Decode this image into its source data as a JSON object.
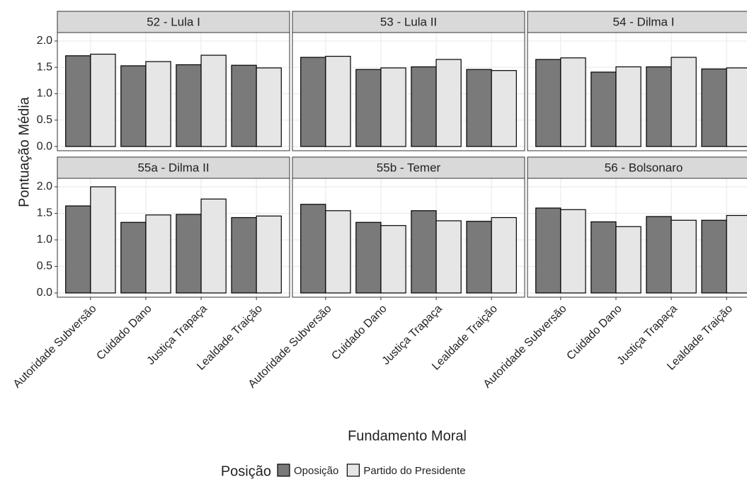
{
  "chart_data": {
    "type": "bar",
    "x_label": "Fundamento Moral",
    "y_label": "Pontuação Média",
    "legend_title": "Posição",
    "panels": [
      "52 - Lula I",
      "53 - Lula II",
      "54 - Dilma I",
      "55a - Dilma II",
      "55b - Temer",
      "56 - Bolsonaro"
    ],
    "categories": [
      "Autoridade Subversão",
      "Cuidado Dano",
      "Justiça Trapaça",
      "Lealdade Traição"
    ],
    "ylim": [
      -0.08,
      2.16
    ],
    "yticks": [
      {
        "value": 0,
        "label": "0.0"
      },
      0.5,
      {
        "value": 1,
        "label": "1.0"
      },
      1.5,
      {
        "value": 2,
        "label": "2.0"
      }
    ],
    "grid": true,
    "series": [
      {
        "name": "Oposição",
        "color": "#7a7a7a",
        "values": [
          [
            1.72,
            1.53,
            1.55,
            1.54
          ],
          [
            1.69,
            1.46,
            1.51,
            1.46
          ],
          [
            1.65,
            1.41,
            1.51,
            1.47
          ],
          [
            1.64,
            1.33,
            1.48,
            1.42
          ],
          [
            1.67,
            1.33,
            1.55,
            1.35
          ],
          [
            1.6,
            1.34,
            1.44,
            1.37
          ]
        ]
      },
      {
        "name": "Partido do Presidente",
        "color": "#e6e6e6",
        "values": [
          [
            1.75,
            1.61,
            1.73,
            1.49
          ],
          [
            1.71,
            1.49,
            1.65,
            1.44
          ],
          [
            1.68,
            1.51,
            1.69,
            1.49
          ],
          [
            2.0,
            1.47,
            1.77,
            1.45
          ],
          [
            1.55,
            1.27,
            1.36,
            1.42
          ],
          [
            1.57,
            1.25,
            1.37,
            1.46
          ]
        ]
      }
    ]
  }
}
